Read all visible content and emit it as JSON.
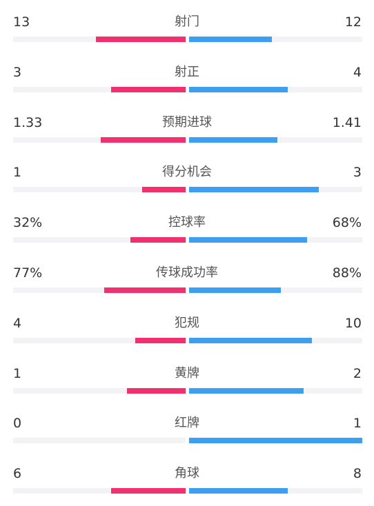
{
  "colors": {
    "home": "#f0306f",
    "away": "#3d9ff0"
  },
  "chart_data": {
    "type": "bar",
    "orientation": "diverging-horizontal",
    "categories": [
      "射门",
      "射正",
      "预期进球",
      "得分机会",
      "控球率",
      "传球成功率",
      "犯规",
      "黄牌",
      "红牌",
      "角球"
    ],
    "series": [
      {
        "side": "home",
        "color": "#f0306f",
        "values": [
          13,
          3,
          1.33,
          1,
          32,
          77,
          4,
          1,
          0,
          6
        ],
        "labels": [
          "13",
          "3",
          "1.33",
          "1",
          "32%",
          "77%",
          "4",
          "1",
          "0",
          "6"
        ],
        "bar_fill": [
          0.52,
          0.43,
          0.49,
          0.25,
          0.32,
          0.47,
          0.29,
          0.34,
          0,
          0.43
        ]
      },
      {
        "side": "away",
        "color": "#3d9ff0",
        "values": [
          12,
          4,
          1.41,
          3,
          68,
          88,
          10,
          2,
          1,
          8
        ],
        "labels": [
          "12",
          "4",
          "1.41",
          "3",
          "68%",
          "88%",
          "10",
          "2",
          "1",
          "8"
        ],
        "bar_fill": [
          0.48,
          0.57,
          0.51,
          0.75,
          0.68,
          0.53,
          0.71,
          0.66,
          1,
          0.57
        ]
      }
    ]
  }
}
